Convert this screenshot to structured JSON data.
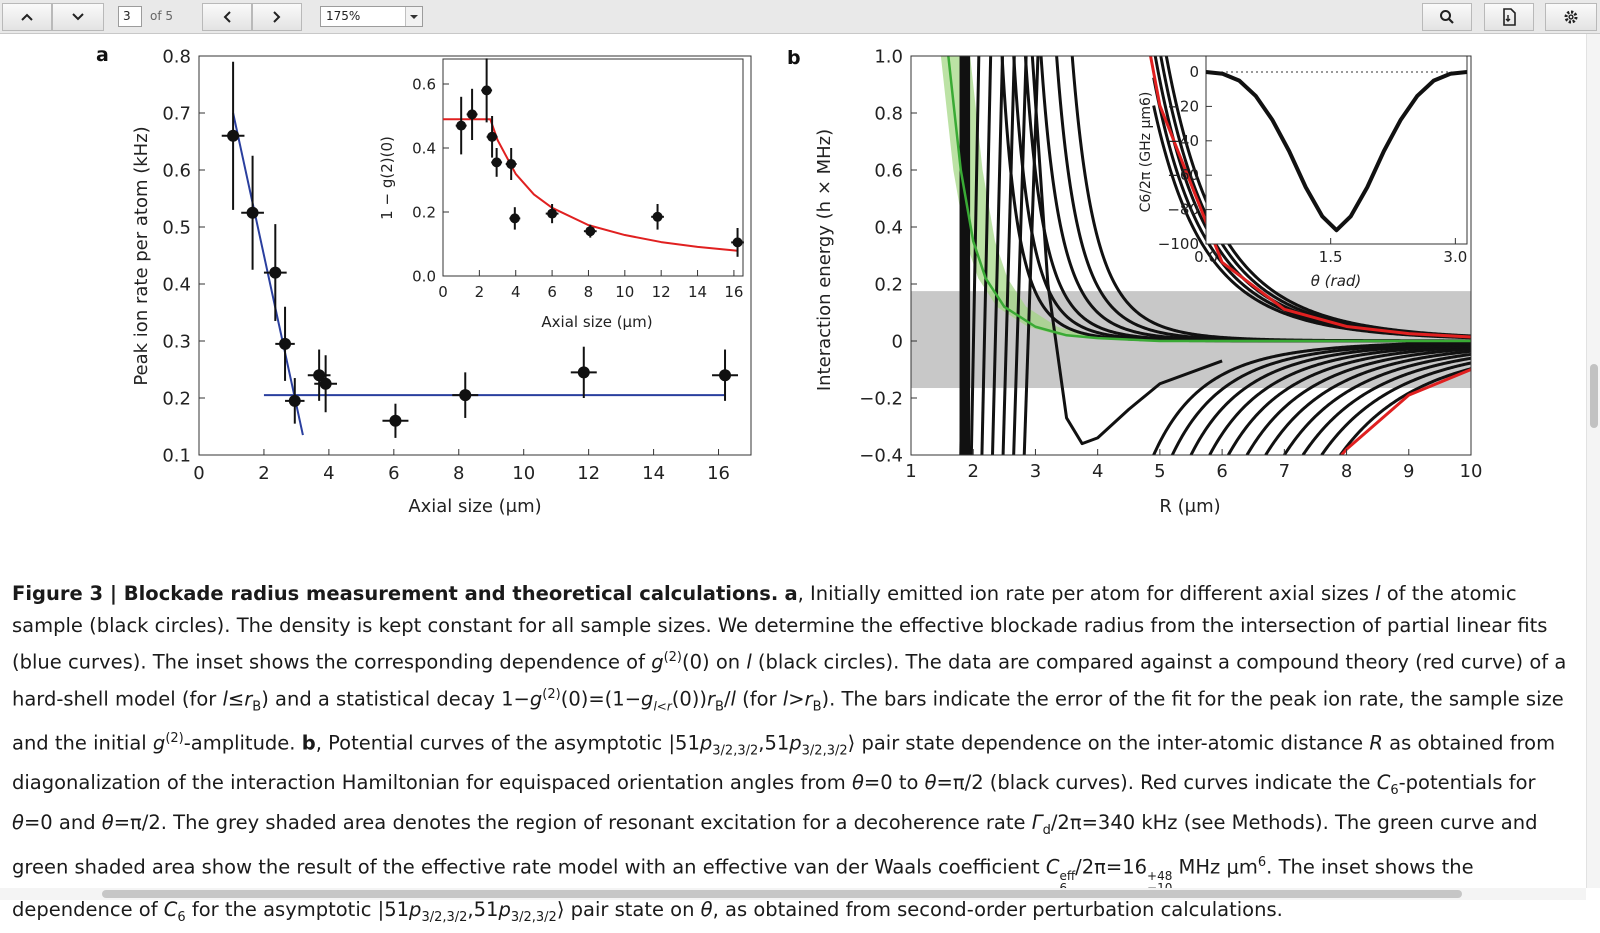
{
  "toolbar": {
    "page_current": "3",
    "page_total": "of 5",
    "zoom": "175%"
  },
  "figure": {
    "a": {
      "label": "a",
      "xlabel": "Axial size (μm)",
      "ylabel": "Peak ion rate per atom (kHz)",
      "xticks": [
        "0",
        "2",
        "4",
        "6",
        "8",
        "10",
        "12",
        "14",
        "16"
      ],
      "yticks": [
        "0.1",
        "0.2",
        "0.3",
        "0.4",
        "0.5",
        "0.6",
        "0.7",
        "0.8"
      ],
      "inset": {
        "xlabel": "Axial size (μm)",
        "ylabel": "1 − g(2)(0)",
        "xticks": [
          "0",
          "2",
          "4",
          "6",
          "8",
          "10",
          "12",
          "14",
          "16"
        ],
        "yticks": [
          "0.0",
          "0.2",
          "0.4",
          "0.6"
        ]
      }
    },
    "b": {
      "label": "b",
      "xlabel": "R (μm)",
      "ylabel": "Interaction energy (h × MHz)",
      "xticks": [
        "1",
        "2",
        "3",
        "4",
        "5",
        "6",
        "7",
        "8",
        "9",
        "10"
      ],
      "yticks": [
        "1.0",
        "0.8",
        "0.6",
        "0.4",
        "0.2",
        "0",
        "−0.2",
        "−0.4"
      ],
      "inset": {
        "xlabel": "θ (rad)",
        "ylabel": "C6/2π (GHz μm6)",
        "xticks": [
          "0.0",
          "1.5",
          "3.0"
        ],
        "yticks": [
          "0",
          "−20",
          "−40",
          "−60",
          "−80",
          "−100"
        ]
      }
    }
  },
  "chart_data": [
    {
      "type": "scatter",
      "title": "",
      "xlabel": "Axial size (μm)",
      "ylabel": "Peak ion rate per atom (kHz)",
      "xlim": [
        0,
        17
      ],
      "ylim": [
        0.1,
        0.8
      ],
      "series": [
        {
          "name": "black circles",
          "x": [
            1.05,
            1.65,
            2.35,
            2.65,
            2.95,
            3.7,
            3.9,
            6.05,
            8.2,
            11.85,
            16.2
          ],
          "y": [
            0.66,
            0.525,
            0.42,
            0.295,
            0.195,
            0.24,
            0.225,
            0.16,
            0.205,
            0.245,
            0.24
          ],
          "xerr": [
            0.35,
            0.35,
            0.35,
            0.3,
            0.3,
            0.35,
            0.35,
            0.4,
            0.4,
            0.4,
            0.4
          ],
          "yerr": [
            0.13,
            0.1,
            0.085,
            0.065,
            0.04,
            0.045,
            0.05,
            0.03,
            0.04,
            0.045,
            0.045
          ]
        },
        {
          "name": "blue fit 1",
          "x": [
            1.05,
            3.2
          ],
          "y": [
            0.7,
            0.135
          ]
        },
        {
          "name": "blue fit 2",
          "x": [
            2.0,
            16.2
          ],
          "y": [
            0.205,
            0.205
          ]
        }
      ]
    },
    {
      "type": "scatter",
      "title": "",
      "xlabel": "Axial size (μm)",
      "ylabel": "1 − g(2)(0)",
      "xlim": [
        0,
        16.5
      ],
      "ylim": [
        0,
        0.6
      ],
      "series": [
        {
          "name": "black circles",
          "x": [
            1.0,
            1.6,
            2.4,
            2.7,
            2.95,
            3.75,
            3.95,
            6.0,
            8.1,
            11.8,
            16.2
          ],
          "y": [
            0.47,
            0.505,
            0.58,
            0.435,
            0.355,
            0.35,
            0.18,
            0.195,
            0.14,
            0.185,
            0.105
          ],
          "xerr": [
            0.3,
            0.3,
            0.3,
            0.3,
            0.3,
            0.3,
            0.3,
            0.35,
            0.35,
            0.35,
            0.35
          ],
          "yerr": [
            0.09,
            0.08,
            0.1,
            0.065,
            0.045,
            0.05,
            0.035,
            0.03,
            0.02,
            0.04,
            0.045
          ]
        },
        {
          "name": "red curve",
          "x": [
            0.0,
            2.0,
            2.6,
            3.0,
            4.0,
            5.0,
            6.0,
            8.0,
            10.0,
            12.0,
            14.0,
            16.2
          ],
          "y": [
            0.49,
            0.49,
            0.49,
            0.425,
            0.319,
            0.255,
            0.213,
            0.159,
            0.128,
            0.106,
            0.091,
            0.079
          ]
        }
      ]
    },
    {
      "type": "line",
      "title": "",
      "xlabel": "R (μm)",
      "ylabel": "Interaction energy (h × MHz)",
      "xlim": [
        1,
        10
      ],
      "ylim": [
        -0.4,
        1.0
      ],
      "shaded_regions": [
        {
          "name": "grey shaded area",
          "y": [
            -0.165,
            0.175
          ]
        }
      ],
      "series": [
        {
          "name": "red curve (θ = 0), positive",
          "x": [
            4.85,
            5.0,
            6.0,
            7.0,
            8.0,
            9.0,
            10.0
          ],
          "y": [
            1.0,
            0.826,
            0.276,
            0.111,
            0.051,
            0.026,
            0.014
          ]
        },
        {
          "name": "red curve (θ = π/2), negative",
          "x": [
            7.92,
            8.0,
            9.0,
            10.0
          ],
          "y": [
            -0.4,
            -0.38,
            -0.19,
            -0.1
          ]
        },
        {
          "name": "green curve",
          "x": [
            1.6,
            1.8,
            2.0,
            2.2,
            2.5,
            3.0,
            3.5,
            4.0,
            5.0,
            10.0
          ],
          "y": [
            1.0,
            0.6,
            0.35,
            0.22,
            0.12,
            0.05,
            0.02,
            0.01,
            0.0,
            0.0
          ]
        },
        {
          "name": "black curve well",
          "x": [
            2.95,
            3.2,
            3.5,
            3.75,
            4.0,
            4.5,
            5.0,
            6.0
          ],
          "y": [
            1.0,
            0.2,
            -0.27,
            -0.36,
            -0.34,
            -0.24,
            -0.15,
            -0.07
          ]
        }
      ]
    },
    {
      "type": "line",
      "title": "",
      "xlabel": "θ (rad)",
      "ylabel": "C6/2π (GHz μm6)",
      "xlim": [
        0,
        3.14
      ],
      "ylim": [
        -100,
        5
      ],
      "series": [
        {
          "name": "C6(θ)",
          "x": [
            0.0,
            0.2,
            0.4,
            0.6,
            0.8,
            1.0,
            1.2,
            1.4,
            1.57,
            1.74,
            1.94,
            2.14,
            2.34,
            2.54,
            2.74,
            2.94,
            3.14
          ],
          "y": [
            0,
            -1,
            -5,
            -14,
            -28,
            -46,
            -67,
            -84,
            -92,
            -84,
            -67,
            -46,
            -28,
            -14,
            -5,
            -1,
            0
          ]
        }
      ]
    }
  ],
  "caption": {
    "label": "Figure 3 | Blockade radius measurement and theoretical calculations.",
    "a": "a",
    "text_a1": ", Initially emitted ion rate per atom for different axial sizes ",
    "l": "l",
    "text_a2": " of the atomic sample (black circles). The density is kept constant for all sample sizes. We determine the effective blockade radius from the intersection of partial linear fits (blue curves). The inset shows the corresponding dependence of ",
    "g": "g",
    "sup2": "(2)",
    "text_a3": "(0) on ",
    "text_a4": " (black circles). The data are compared against a compound theory (red curve) of a hard-shell model (for ",
    "le_rb": "≤",
    "r": "r",
    "B": "B",
    "text_a5": ") and a statistical decay 1−",
    "text_a6": "(0)=(1−",
    "sub_lrb": "l<r",
    "text_a7": "(0))",
    "text_a8": "/",
    "text_a9": " (for ",
    "gt": ">",
    "text_a10": "). The bars indicate the error of the fit for the peak ion rate, the sample size and the initial ",
    "text_a11": "-amplitude. ",
    "b": "b",
    "text_b1": ", Potential curves of the asymptotic |51",
    "p": "p",
    "sub_state": "3/2,3/2",
    "comma": ",51",
    "text_b2": "⟩ pair state dependence on the inter-atomic distance ",
    "R": "R",
    "text_b3": " as obtained from diagonalization of the interaction Hamiltonian for equispaced orientation angles from ",
    "theta": "θ",
    "eq0": "=0 to ",
    "eqpi2": "=π/2 (black curves). Red curves indicate the ",
    "C": "C",
    "six": "6",
    "text_b4": "-potentials for ",
    "and": " and ",
    "text_b5": ". The grey shaded area denotes the region of resonant excitation for a decoherence rate ",
    "Gamma": "Γ",
    "d": "d",
    "text_b6": "/2π=340 kHz (see Methods). The green curve and green shaded area show the result of the effective rate model with an effective van der Waals coefficient ",
    "eff": "eff",
    "text_b7": "/2π=16",
    "plus48": "+48",
    "minus10": "−10",
    "text_b8": " MHz μm",
    "text_b9": ". The inset shows the dependence of ",
    "text_b10": " for the asymptotic |51",
    "sub_state2": "3/2,3/2",
    "text_b11": "⟩ pair state on ",
    "text_b12": ", as obtained from second-order perturbation calculations."
  }
}
